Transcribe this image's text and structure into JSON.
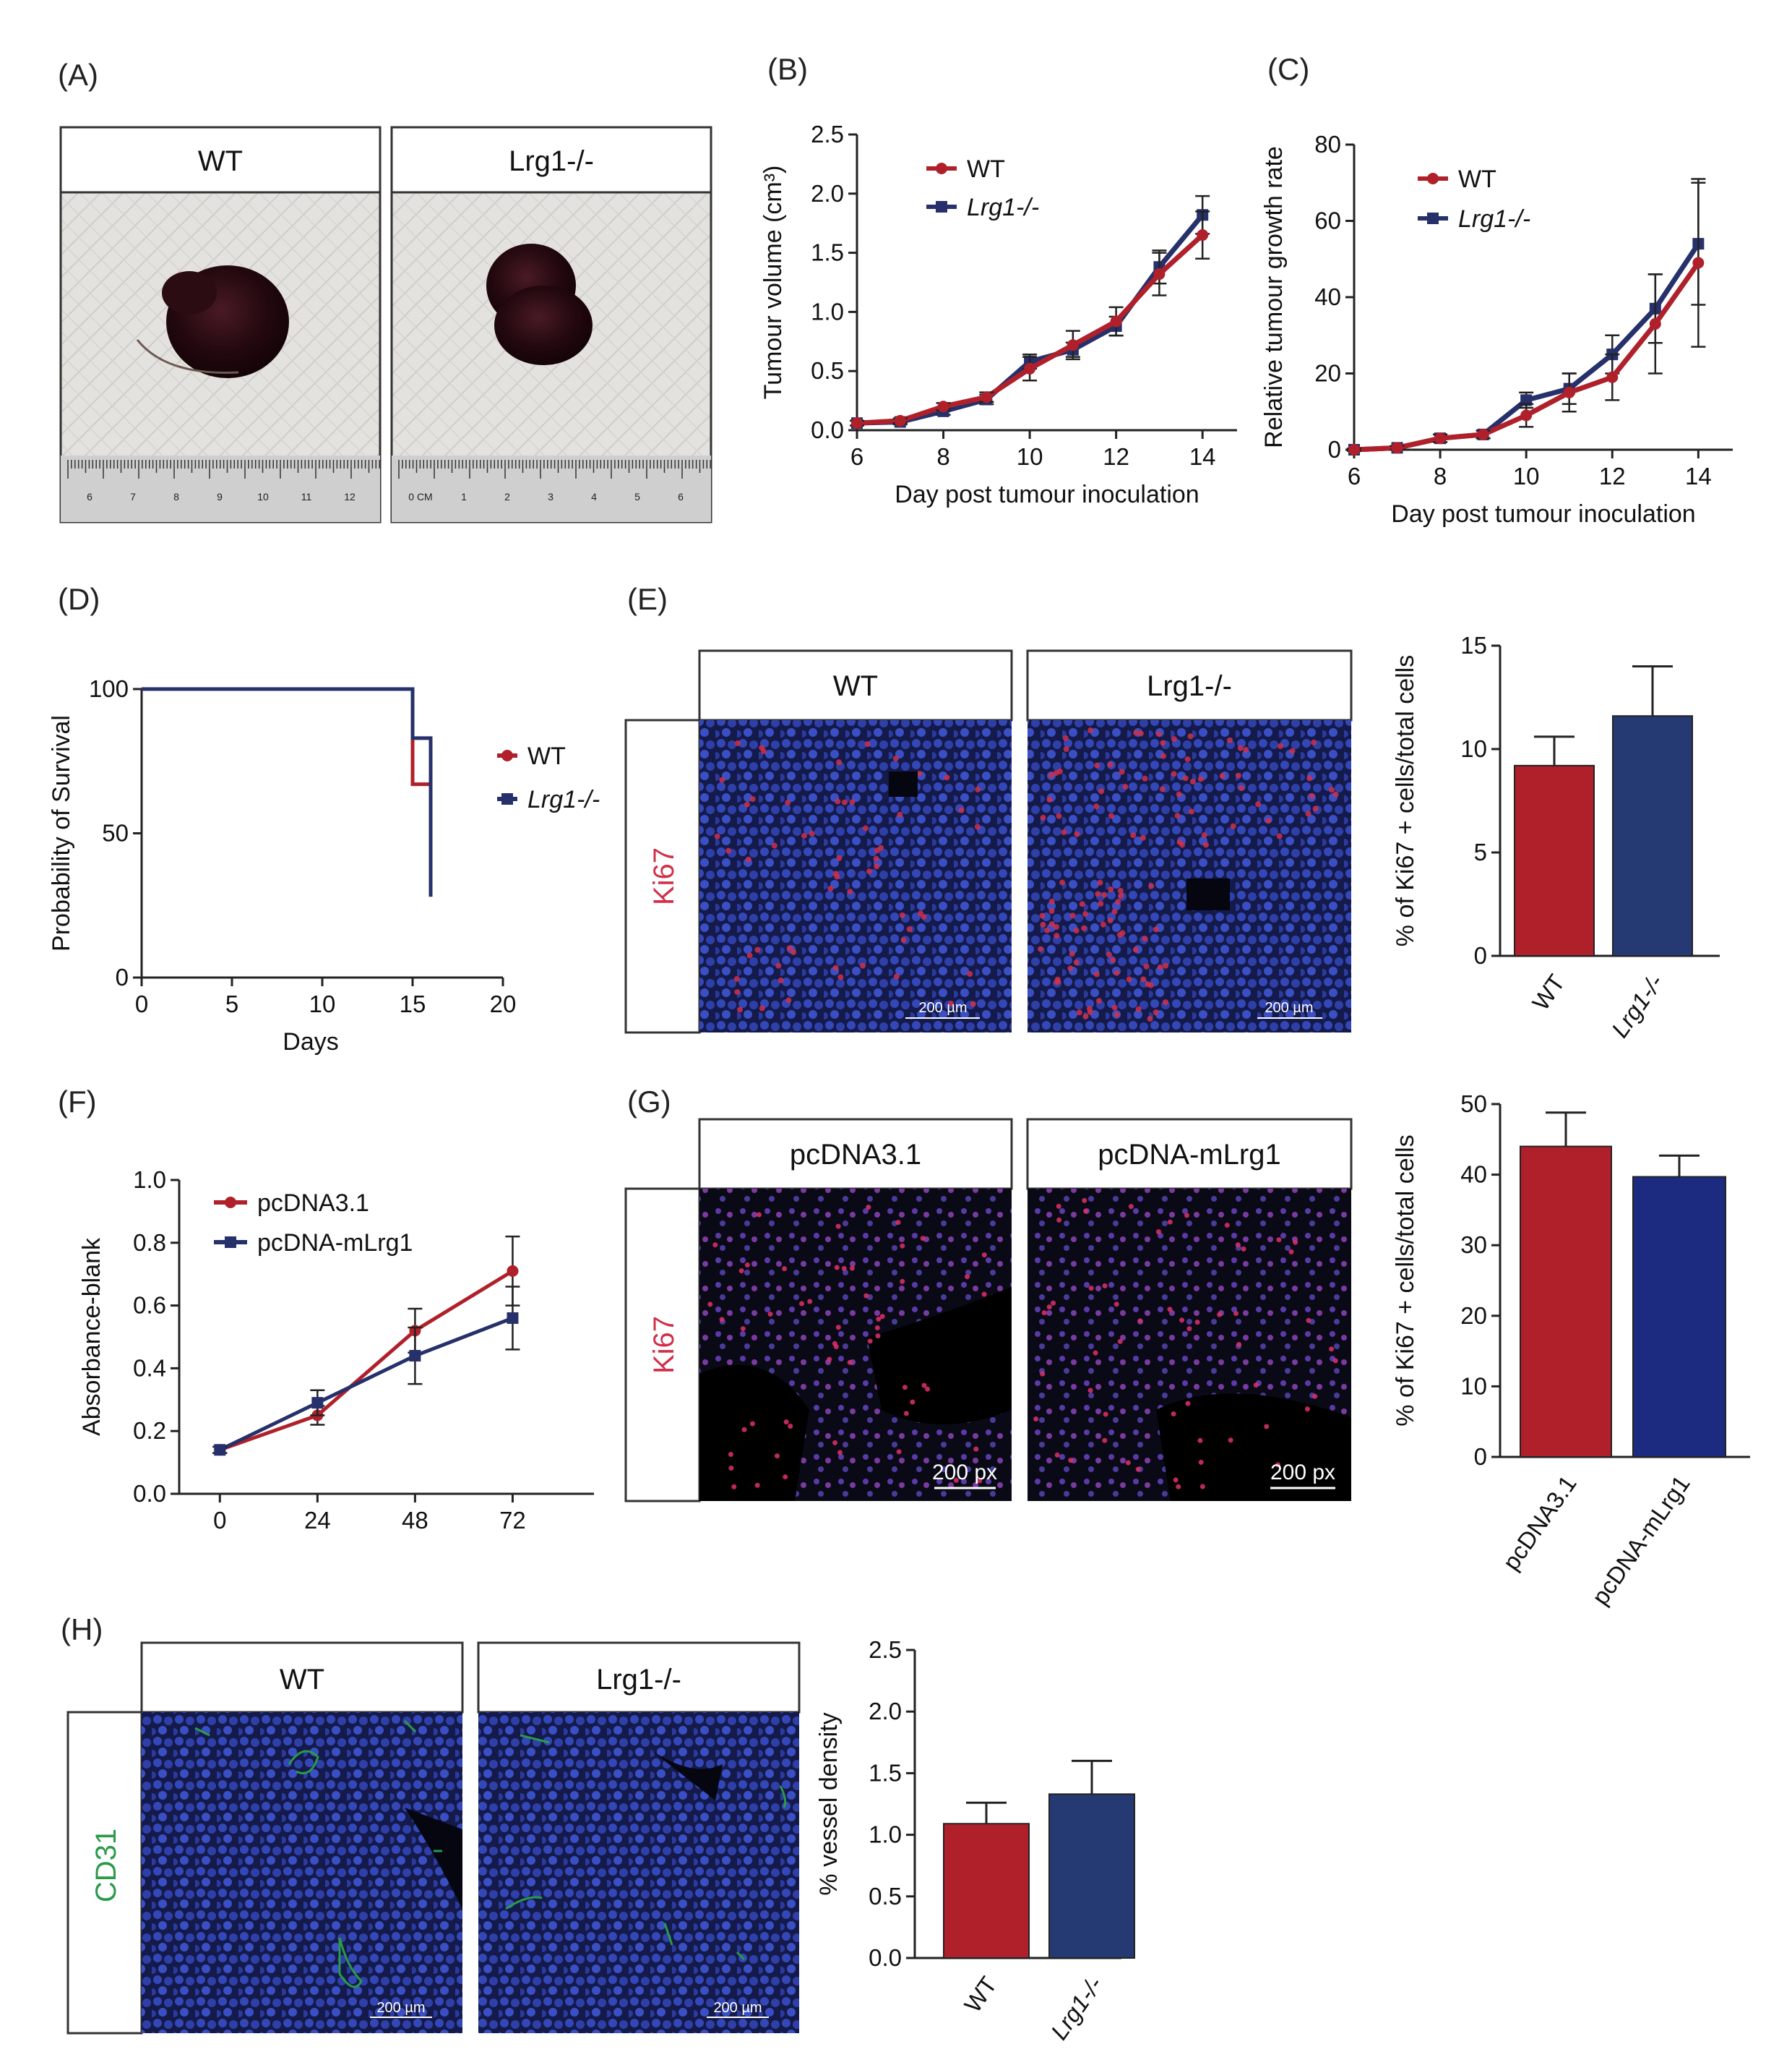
{
  "panels": {
    "A": {
      "label": "(A)",
      "headers": [
        "WT",
        "Lrg1-/-"
      ],
      "ruler_ticks_left": [
        "6",
        "7",
        "8",
        "9",
        "10",
        "11",
        "12"
      ],
      "ruler_ticks_right": [
        "0 CM",
        "1",
        "2",
        "3",
        "4",
        "5",
        "6"
      ]
    },
    "D_label": "(D)",
    "E_label": "(E)",
    "F_label": "(F)",
    "G_label": "(G)",
    "H_label": "(H)"
  },
  "images": {
    "E": {
      "headers": [
        "WT",
        "Lrg1-/-"
      ],
      "stain": "Ki67",
      "scale": "200 µm"
    },
    "G": {
      "headers": [
        "pcDNA3.1",
        "pcDNA-mLrg1"
      ],
      "stain": "Ki67",
      "scale": "200 px"
    },
    "H": {
      "headers": [
        "WT",
        "Lrg1-/-"
      ],
      "stain": "CD31",
      "scale": "200 µm"
    }
  },
  "colors": {
    "wt": "#b0202a",
    "ko": "#26306b",
    "ko_bar": "#253a72",
    "ko_bar_g": "#1c2b80",
    "stain_red": "#d0304a",
    "stain_green": "#2a9a4a",
    "nuclei": "#3347b8"
  },
  "chart_data": [
    {
      "id": "B",
      "label": "(B)",
      "type": "line",
      "title": "",
      "xlabel": "Day post tumour inoculation",
      "ylabel": "Tumour volume (cm³)",
      "xlim": [
        6,
        14.8
      ],
      "ylim": [
        0,
        2.5
      ],
      "xticks": [
        "6",
        "8",
        "10",
        "12",
        "14"
      ],
      "yticks": [
        "0.0",
        "0.5",
        "1.0",
        "1.5",
        "2.0",
        "2.5"
      ],
      "x": [
        6,
        7,
        8,
        9,
        10,
        11,
        12,
        13,
        14
      ],
      "series": [
        {
          "name": "WT",
          "values": [
            0.06,
            0.08,
            0.2,
            0.28,
            0.52,
            0.72,
            0.92,
            1.32,
            1.65
          ],
          "err": [
            0.02,
            0.02,
            0.03,
            0.04,
            0.1,
            0.12,
            0.12,
            0.18,
            0.2
          ]
        },
        {
          "name": "Lrg1-/-",
          "values": [
            0.06,
            0.07,
            0.16,
            0.26,
            0.58,
            0.68,
            0.88,
            1.38,
            1.82
          ],
          "err": [
            0.02,
            0.02,
            0.03,
            0.04,
            0.06,
            0.06,
            0.08,
            0.14,
            0.16
          ]
        }
      ]
    },
    {
      "id": "C",
      "label": "(C)",
      "type": "line",
      "title": "",
      "xlabel": "Day post tumour inoculation",
      "ylabel": "Relative tumour growth rate",
      "xlim": [
        6,
        14.8
      ],
      "ylim": [
        0,
        80
      ],
      "xticks": [
        "6",
        "8",
        "10",
        "12",
        "14"
      ],
      "yticks": [
        "0",
        "20",
        "40",
        "60",
        "80"
      ],
      "x": [
        6,
        7,
        8,
        9,
        10,
        11,
        12,
        13,
        14
      ],
      "series": [
        {
          "name": "WT",
          "values": [
            0,
            0.5,
            3,
            4,
            9,
            15,
            19,
            33,
            49
          ],
          "err": [
            0.3,
            0.5,
            1,
            1,
            3,
            5,
            6,
            13,
            22
          ]
        },
        {
          "name": "Lrg1-/-",
          "values": [
            0,
            0.5,
            3,
            4,
            13,
            16,
            25,
            37,
            54
          ],
          "err": [
            0.3,
            0.5,
            1,
            1,
            2,
            4,
            5,
            9,
            16
          ]
        }
      ]
    },
    {
      "id": "D",
      "type": "line",
      "title": "",
      "xlabel": "Days",
      "ylabel": "Probability of Survival",
      "xlim": [
        0,
        20
      ],
      "ylim": [
        0,
        100
      ],
      "xticks": [
        "0",
        "5",
        "10",
        "15",
        "20"
      ],
      "yticks": [
        "0",
        "50",
        "100"
      ],
      "series": [
        {
          "name": "WT",
          "x": [
            0,
            15,
            15,
            16,
            16
          ],
          "values": [
            100,
            100,
            67,
            67,
            45
          ]
        },
        {
          "name": "Lrg1-/-",
          "x": [
            0,
            15,
            15,
            16,
            16
          ],
          "values": [
            100,
            100,
            83,
            83,
            28
          ]
        }
      ]
    },
    {
      "id": "E",
      "type": "bar",
      "title": "",
      "xlabel": "",
      "ylabel": "% of Ki67 + cells/total cells",
      "ylim": [
        0,
        15
      ],
      "yticks": [
        "0",
        "5",
        "10",
        "15"
      ],
      "categories": [
        "WT",
        "Lrg1-/-"
      ],
      "values": [
        9.2,
        11.6
      ],
      "err": [
        1.4,
        2.4
      ]
    },
    {
      "id": "F",
      "type": "line",
      "title": "",
      "xlabel": "",
      "ylabel": "Absorbance-blank",
      "xlim": [
        -10,
        92
      ],
      "ylim": [
        0,
        1.0
      ],
      "xticks": [
        "0",
        "24",
        "48",
        "72"
      ],
      "yticks": [
        "0.0",
        "0.2",
        "0.4",
        "0.6",
        "0.8",
        "1.0"
      ],
      "x": [
        0,
        24,
        48,
        72
      ],
      "series": [
        {
          "name": "pcDNA3.1",
          "values": [
            0.14,
            0.25,
            0.52,
            0.71
          ],
          "err": [
            0.01,
            0.03,
            0.07,
            0.11
          ]
        },
        {
          "name": "pcDNA-mLrg1",
          "values": [
            0.14,
            0.29,
            0.44,
            0.56
          ],
          "err": [
            0.01,
            0.04,
            0.09,
            0.1
          ]
        }
      ]
    },
    {
      "id": "G",
      "type": "bar",
      "title": "",
      "xlabel": "",
      "ylabel": "% of Ki67 + cells/total cells",
      "ylim": [
        0,
        50
      ],
      "yticks": [
        "0",
        "10",
        "20",
        "30",
        "40",
        "50"
      ],
      "categories": [
        "pcDNA3.1",
        "pcDNA-mLrg1"
      ],
      "values": [
        44,
        39.7
      ],
      "err": [
        4.8,
        3
      ]
    },
    {
      "id": "H",
      "type": "bar",
      "title": "",
      "xlabel": "",
      "ylabel": "% vessel density",
      "ylim": [
        0,
        2.5
      ],
      "yticks": [
        "0.0",
        "0.5",
        "1.0",
        "1.5",
        "2.0",
        "2.5"
      ],
      "categories": [
        "WT",
        "Lrg1-/-"
      ],
      "values": [
        1.09,
        1.33
      ],
      "err": [
        0.17,
        0.27
      ]
    }
  ]
}
